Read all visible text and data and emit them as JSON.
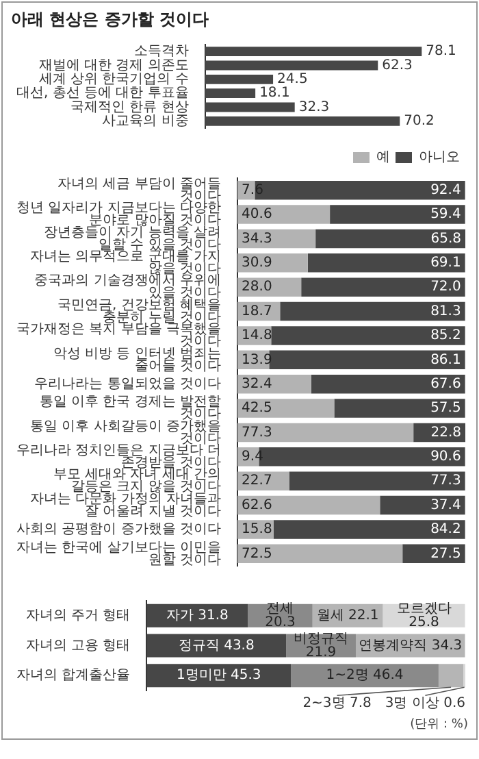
{
  "chart_data": [
    {
      "type": "bar",
      "orientation": "horizontal",
      "title": "아래 현상은 증가할 것이다",
      "categories": [
        "소득격차",
        "재벌에 대한 경제 의존도",
        "세계 상위 한국기업의 수",
        "대선, 총선 등에 대한 투표율",
        "국제적인 한류 현상",
        "사교육의 비중"
      ],
      "values": [
        78.1,
        62.3,
        24.5,
        18.1,
        32.3,
        70.2
      ],
      "color": "#474747",
      "data_labels": true
    },
    {
      "type": "bar",
      "orientation": "horizontal",
      "stacked": true,
      "legend": "top right",
      "categories": [
        "자녀의 세금 부담이 줄어들 것이다",
        "청년 일자리가 지금보다는 다양한 분야로 많아질 것이다",
        "장년층들이 자기 능력을 살려 일할 수 있을 것이다",
        "자녀는 의무적으로 군대를 가지 않을 것이다",
        "중국과의 기술경쟁에서 우위에 있을 것이다",
        "국민연금, 건강보험 혜택을 충분히 누릴 것이다",
        "국가재정은 복지 부담을 극복했을 것이다",
        "악성 비방 등 인터넷 범죄는 줄어들 것이다",
        "우리나라는 통일되었을 것이다",
        "통일 이후 한국 경제는 발전할 것이다",
        "통일 이후 사회갈등이 증가했을 것이다",
        "우리나라 정치인들은 지금보다 더 존경받을 것이다",
        "부모 세대와 자녀 세대 간의 갈등은 크지 않을 것이다",
        "자녀는 다문화 가정의 자녀들과 잘 어울려 지낼 것이다",
        "사회의 공평함이 증가했을 것이다",
        "자녀는 한국에 살기보다는 이민을 원할 것이다"
      ],
      "series": [
        {
          "name": "예",
          "color": "#b3b3b3",
          "values": [
            7.6,
            40.6,
            34.3,
            30.9,
            28.0,
            18.7,
            14.8,
            13.9,
            32.4,
            42.5,
            77.3,
            9.4,
            22.7,
            62.6,
            15.8,
            72.5
          ],
          "value_labels": [
            "7.6",
            "40.6",
            "34.3",
            "30.9",
            "28.0",
            "18.7",
            "14.8",
            "13.9",
            "32.4",
            "42.5",
            "77.3",
            "9.4",
            "22.7",
            "62.6",
            "15.8",
            "72.5"
          ]
        },
        {
          "name": "아니오",
          "color": "#474747",
          "values": [
            92.4,
            59.4,
            65.8,
            69.1,
            72.0,
            81.3,
            85.2,
            86.1,
            67.6,
            57.5,
            22.8,
            90.6,
            77.3,
            37.4,
            84.2,
            27.5
          ],
          "value_labels": [
            "92.4",
            "59.4",
            "65.8",
            "69.1",
            "72.0",
            "81.3",
            "85.2",
            "86.1",
            "67.6",
            "57.5",
            "22.8",
            "90.6",
            "77.3",
            "37.4",
            "84.2",
            "27.5"
          ]
        }
      ]
    },
    {
      "type": "bar",
      "orientation": "horizontal",
      "stacked": true,
      "categories": [
        "자녀의 주거 형태",
        "자녀의 고용 형태",
        "자녀의 합계출산율"
      ],
      "annotations": [
        "(단위 : %)"
      ],
      "series": [
        {
          "color": "#474747",
          "values": [
            31.8,
            43.8,
            45.3
          ],
          "value_labels": [
            "자가 31.8",
            "정규직 43.8",
            "1명미만 45.3"
          ]
        },
        {
          "color": "#8a8a8a",
          "values": [
            20.3,
            21.9,
            46.4
          ],
          "value_labels": [
            "전세 20.3",
            "비정규직 21.9",
            "1~2명 46.4"
          ]
        },
        {
          "color": "#b5b5b5",
          "values": [
            22.1,
            34.3,
            7.8
          ],
          "value_labels": [
            "월세 22.1",
            "연봉계약직 34.3",
            "2~3명 7.8"
          ]
        },
        {
          "color": "#d9d9d9",
          "values": [
            25.8,
            null,
            0.6
          ],
          "value_labels": [
            "모르겠다 25.8",
            null,
            "3명 이상 0.6"
          ]
        }
      ]
    }
  ]
}
